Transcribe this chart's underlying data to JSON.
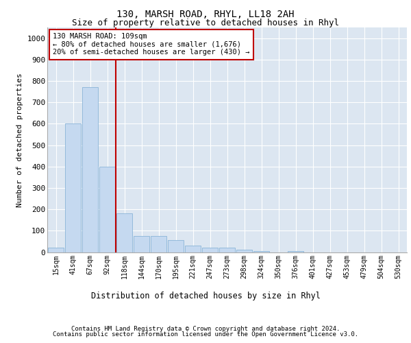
{
  "title1": "130, MARSH ROAD, RHYL, LL18 2AH",
  "title2": "Size of property relative to detached houses in Rhyl",
  "xlabel": "Distribution of detached houses by size in Rhyl",
  "ylabel": "Number of detached properties",
  "footer1": "Contains HM Land Registry data © Crown copyright and database right 2024.",
  "footer2": "Contains public sector information licensed under the Open Government Licence v3.0.",
  "annotation_line1": "130 MARSH ROAD: 109sqm",
  "annotation_line2": "← 80% of detached houses are smaller (1,676)",
  "annotation_line3": "20% of semi-detached houses are larger (430) →",
  "bar_color": "#c5d9f0",
  "bar_edge_color": "#8ab4d8",
  "highlight_color": "#c00000",
  "plot_bg_color": "#dce6f1",
  "categories": [
    "15sqm",
    "41sqm",
    "67sqm",
    "92sqm",
    "118sqm",
    "144sqm",
    "170sqm",
    "195sqm",
    "221sqm",
    "247sqm",
    "273sqm",
    "298sqm",
    "324sqm",
    "350sqm",
    "376sqm",
    "401sqm",
    "427sqm",
    "453sqm",
    "479sqm",
    "504sqm",
    "530sqm"
  ],
  "values": [
    20,
    600,
    770,
    400,
    180,
    75,
    75,
    55,
    30,
    20,
    20,
    10,
    5,
    0,
    5,
    0,
    0,
    0,
    0,
    0,
    0
  ],
  "red_line_x": 3.5,
  "ylim": [
    0,
    1050
  ],
  "yticks": [
    0,
    100,
    200,
    300,
    400,
    500,
    600,
    700,
    800,
    900,
    1000
  ]
}
